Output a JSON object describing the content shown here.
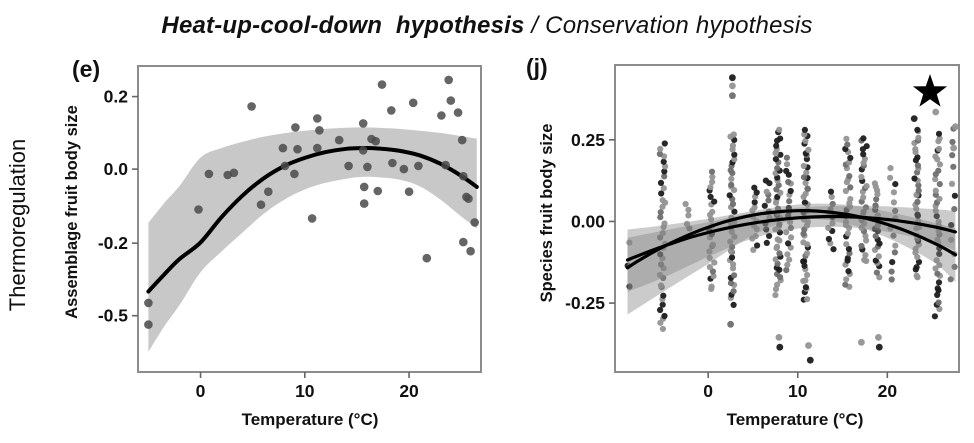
{
  "figure": {
    "title_bold": "Heat-up-cool-down  hypothesis",
    "title_separator": " / ",
    "title_regular": "Conservation hypothesis",
    "row_label": "Thermoregulation"
  },
  "colors": {
    "curve": "#000000",
    "frame": "#8c8c8c",
    "tick": "#666666",
    "text": "#111111",
    "assemblage_point": "#4a4a4a",
    "species_point_gray": "#949494",
    "species_point_mid": "#6e6e6e",
    "species_point_black": "#1c1c1c",
    "band_light": "#c8c8c8",
    "band_overlay": "rgba(130,130,130,0.42)"
  },
  "chart_data": [
    {
      "id": "e",
      "type": "scatter",
      "panel_label": "(e)",
      "xlabel": "Temperature (°C)",
      "ylabel": "Assemblage fruit body size",
      "x_ticks": [
        {
          "label": "0",
          "value": 0
        },
        {
          "label": "10",
          "value": 10
        },
        {
          "label": "20",
          "value": 20
        }
      ],
      "y_ticks": [
        {
          "label": "0.2",
          "value": 0.2
        },
        {
          "label": "0.0",
          "value": 0.0
        },
        {
          "label": "-0.2",
          "value": -0.2
        },
        {
          "label": "-0.5",
          "value": -0.5
        }
      ],
      "xlim": [
        -6,
        26.9
      ],
      "points": [
        [
          17.4,
          0.233
        ],
        [
          23.8,
          0.246
        ],
        [
          4.9,
          0.173
        ],
        [
          20.4,
          0.183
        ],
        [
          24.0,
          0.189
        ],
        [
          18.3,
          0.162
        ],
        [
          23.1,
          0.148
        ],
        [
          24.7,
          0.156
        ],
        [
          11.2,
          0.14
        ],
        [
          9.1,
          0.115
        ],
        [
          11.4,
          0.107
        ],
        [
          15.6,
          0.126
        ],
        [
          13.3,
          0.08
        ],
        [
          16.4,
          0.083
        ],
        [
          16.8,
          0.077
        ],
        [
          7.9,
          0.058
        ],
        [
          9.3,
          0.055
        ],
        [
          11.2,
          0.058
        ],
        [
          15.6,
          0.052
        ],
        [
          25.1,
          0.08
        ],
        [
          0.8,
          -0.013
        ],
        [
          2.6,
          -0.016
        ],
        [
          3.2,
          -0.01
        ],
        [
          8.1,
          0.009
        ],
        [
          9.0,
          -0.013
        ],
        [
          14.2,
          0.009
        ],
        [
          16.0,
          0.006
        ],
        [
          18.4,
          0.017
        ],
        [
          19.5,
          0.0
        ],
        [
          20.9,
          0.009
        ],
        [
          23.5,
          0.011
        ],
        [
          25.2,
          -0.019
        ],
        [
          6.5,
          -0.061
        ],
        [
          15.7,
          -0.048
        ],
        [
          17.0,
          -0.059
        ],
        [
          20.0,
          -0.061
        ],
        [
          -0.2,
          -0.109
        ],
        [
          5.8,
          -0.096
        ],
        [
          15.7,
          -0.093
        ],
        [
          25.5,
          -0.075
        ],
        [
          25.7,
          -0.08
        ],
        [
          10.7,
          -0.133
        ],
        [
          26.3,
          -0.144
        ],
        [
          25.2,
          -0.197
        ],
        [
          25.9,
          -0.233
        ],
        [
          21.7,
          -0.262
        ],
        [
          -5.0,
          -0.447
        ],
        [
          -5.0,
          -0.537
        ]
      ],
      "fit_curve": {
        "x": [
          -5,
          -3.5,
          -2,
          0,
          2,
          4,
          6,
          8,
          10,
          12,
          14,
          15.5,
          17,
          19,
          21,
          23,
          25,
          26.5
        ],
        "y": [
          -0.4,
          -0.33,
          -0.265,
          -0.198,
          -0.13,
          -0.072,
          -0.026,
          0.008,
          0.031,
          0.047,
          0.056,
          0.058,
          0.057,
          0.051,
          0.038,
          0.015,
          -0.018,
          -0.048
        ]
      },
      "ci_band": {
        "x": [
          -5,
          -3.5,
          -2,
          0,
          2,
          4,
          6,
          8,
          10,
          12,
          14,
          15.5,
          17,
          19,
          21,
          23,
          25,
          26.5
        ],
        "upper": [
          -0.145,
          -0.092,
          -0.045,
          0.032,
          0.058,
          0.075,
          0.089,
          0.099,
          0.106,
          0.111,
          0.114,
          0.115,
          0.114,
          0.111,
          0.106,
          0.1,
          0.091,
          0.084
        ],
        "lower": [
          -0.65,
          -0.545,
          -0.455,
          -0.32,
          -0.235,
          -0.172,
          -0.122,
          -0.083,
          -0.055,
          -0.037,
          -0.026,
          -0.021,
          -0.022,
          -0.028,
          -0.046,
          -0.082,
          -0.128,
          -0.16
        ]
      }
    },
    {
      "id": "j",
      "type": "scatter",
      "panel_label": "(j)",
      "xlabel": "Temperature (°C)",
      "ylabel": "Species fruit body size",
      "x_ticks": [
        {
          "label": "0",
          "value": 0
        },
        {
          "label": "10",
          "value": 10
        },
        {
          "label": "20",
          "value": 20
        }
      ],
      "y_ticks": [
        {
          "label": "0.25",
          "value": 0.25
        },
        {
          "label": "0.00",
          "value": 0.0
        },
        {
          "label": "-0.25",
          "value": -0.25
        }
      ],
      "xlim": [
        -10.4,
        28
      ],
      "ylim": [
        -0.46,
        0.48
      ],
      "significance_star": "★",
      "point_strips": [
        {
          "x": -8.7,
          "y_min": -0.2,
          "y_max": -0.06,
          "n": 3
        },
        {
          "x": -5.1,
          "y_min": -0.33,
          "y_max": 0.24,
          "n": 38
        },
        {
          "x": -2.3,
          "y_min": -0.02,
          "y_max": 0.05,
          "n": 5
        },
        {
          "x": 0.4,
          "y_min": -0.21,
          "y_max": 0.15,
          "n": 26
        },
        {
          "x": 2.7,
          "y_min": -0.25,
          "y_max": 0.27,
          "n": 42
        },
        {
          "x": 5.2,
          "y_min": -0.085,
          "y_max": 0.1,
          "n": 14
        },
        {
          "x": 6.6,
          "y_min": -0.06,
          "y_max": 0.13,
          "n": 12
        },
        {
          "x": 7.8,
          "y_min": -0.22,
          "y_max": 0.28,
          "n": 45
        },
        {
          "x": 9.0,
          "y_min": -0.145,
          "y_max": 0.19,
          "n": 22
        },
        {
          "x": 10.9,
          "y_min": -0.245,
          "y_max": 0.28,
          "n": 46
        },
        {
          "x": 13.7,
          "y_min": -0.08,
          "y_max": 0.085,
          "n": 12
        },
        {
          "x": 15.6,
          "y_min": -0.205,
          "y_max": 0.255,
          "n": 34
        },
        {
          "x": 17.4,
          "y_min": -0.125,
          "y_max": 0.26,
          "n": 30
        },
        {
          "x": 18.9,
          "y_min": -0.165,
          "y_max": 0.115,
          "n": 24
        },
        {
          "x": 20.6,
          "y_min": -0.175,
          "y_max": 0.165,
          "n": 14
        },
        {
          "x": 23.3,
          "y_min": -0.175,
          "y_max": 0.285,
          "n": 38
        },
        {
          "x": 25.6,
          "y_min": -0.285,
          "y_max": 0.27,
          "n": 40
        },
        {
          "x": 27.3,
          "y_min": -0.18,
          "y_max": 0.29,
          "n": 12
        }
      ],
      "outlier_points": [
        {
          "x": 2.7,
          "y": 0.44,
          "shade": "black"
        },
        {
          "x": 2.7,
          "y": 0.415,
          "shade": "gray"
        },
        {
          "x": 2.7,
          "y": 0.385,
          "shade": "mid"
        },
        {
          "x": 2.5,
          "y": -0.315,
          "shade": "mid"
        },
        {
          "x": 7.9,
          "y": -0.355,
          "shade": "gray"
        },
        {
          "x": 8.0,
          "y": -0.385,
          "shade": "black"
        },
        {
          "x": 11.2,
          "y": -0.38,
          "shade": "gray"
        },
        {
          "x": 11.4,
          "y": -0.425,
          "shade": "black"
        },
        {
          "x": 17.1,
          "y": -0.37,
          "shade": "gray"
        },
        {
          "x": 19.0,
          "y": -0.355,
          "shade": "gray"
        },
        {
          "x": 19.1,
          "y": -0.385,
          "shade": "black"
        },
        {
          "x": 23.0,
          "y": 0.315,
          "shade": "black"
        },
        {
          "x": 25.4,
          "y": 0.335,
          "shade": "gray"
        },
        {
          "x": 27.6,
          "y": 0.29,
          "shade": "gray"
        },
        {
          "x": 27.4,
          "y": 0.225,
          "shade": "gray"
        }
      ],
      "fit_curves": [
        {
          "name": "curve-steep",
          "x": [
            -9,
            -8,
            -6,
            -4,
            -2,
            0,
            2,
            4,
            6,
            8,
            10,
            12,
            14,
            16,
            18,
            20,
            22,
            24,
            26,
            27.6
          ],
          "y": [
            -0.142,
            -0.124,
            -0.092,
            -0.064,
            -0.039,
            -0.018,
            0.0,
            0.014,
            0.024,
            0.03,
            0.033,
            0.032,
            0.027,
            0.019,
            0.007,
            -0.009,
            -0.028,
            -0.051,
            -0.077,
            -0.102
          ]
        },
        {
          "name": "curve-flat",
          "x": [
            -9,
            -8,
            -6,
            -4,
            -2,
            0,
            2,
            4,
            6,
            8,
            10,
            12,
            14,
            16,
            18,
            20,
            22,
            24,
            26,
            27.6
          ],
          "y": [
            -0.118,
            -0.107,
            -0.086,
            -0.067,
            -0.049,
            -0.034,
            -0.021,
            -0.01,
            -0.001,
            0.006,
            0.011,
            0.014,
            0.015,
            0.014,
            0.011,
            0.006,
            -0.001,
            -0.01,
            -0.021,
            -0.032
          ]
        }
      ],
      "ci_bands": [
        {
          "name": "band-steep",
          "x": [
            -9,
            -5,
            0,
            5,
            10,
            15,
            20,
            25,
            27.6
          ],
          "upper": [
            -0.025,
            -0.012,
            0.008,
            0.032,
            0.052,
            0.052,
            0.03,
            -0.002,
            -0.022
          ],
          "lower": [
            -0.285,
            -0.215,
            -0.13,
            -0.042,
            0.006,
            -0.004,
            -0.05,
            -0.122,
            -0.185
          ]
        },
        {
          "name": "band-flat",
          "x": [
            -9,
            -5,
            0,
            5,
            10,
            15,
            20,
            25,
            27.6
          ],
          "upper": [
            -0.05,
            -0.028,
            -0.002,
            0.026,
            0.042,
            0.048,
            0.046,
            0.038,
            0.032
          ],
          "lower": [
            -0.215,
            -0.172,
            -0.108,
            -0.052,
            -0.022,
            -0.017,
            -0.032,
            -0.062,
            -0.09
          ]
        }
      ]
    }
  ]
}
